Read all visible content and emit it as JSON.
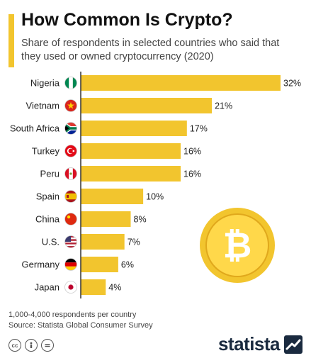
{
  "header": {
    "title": "How Common Is Crypto?",
    "subtitle": "Share of respondents in selected countries who said that they used or owned cryptocurrency (2020)"
  },
  "chart_data": {
    "type": "bar",
    "orientation": "horizontal",
    "title": "How Common Is Crypto?",
    "subtitle": "Share of respondents in selected countries who said that they used or owned cryptocurrency (2020)",
    "categories": [
      "Nigeria",
      "Vietnam",
      "South Africa",
      "Turkey",
      "Peru",
      "Spain",
      "China",
      "U.S.",
      "Germany",
      "Japan"
    ],
    "values": [
      32,
      21,
      17,
      16,
      16,
      10,
      8,
      7,
      6,
      4
    ],
    "value_labels": [
      "32%",
      "21%",
      "17%",
      "16%",
      "16%",
      "10%",
      "8%",
      "7%",
      "6%",
      "4%"
    ],
    "unit": "%",
    "xlim": [
      0,
      32
    ],
    "grid": false,
    "legend": "none",
    "bar_color": "#f2c52e",
    "axis_color": "#333333",
    "flag_icons": [
      "nigeria-flag-icon",
      "vietnam-flag-icon",
      "south-africa-flag-icon",
      "turkey-flag-icon",
      "peru-flag-icon",
      "spain-flag-icon",
      "china-flag-icon",
      "us-flag-icon",
      "germany-flag-icon",
      "japan-flag-icon"
    ]
  },
  "decoration": {
    "coin_icon": "bitcoin-coin-icon",
    "coin_colors": [
      "#f2c52e",
      "#ffd84a",
      "#e0a81c"
    ]
  },
  "footer": {
    "note": "1,000-4,000 respondents per country",
    "source": "Source: Statista Global Consumer Survey",
    "license_icons": [
      "cc-icon",
      "attribution-icon",
      "no-derivatives-icon"
    ]
  },
  "brand": {
    "name": "statista",
    "logo_icon": "statista-logo-icon",
    "color": "#1a2a3f"
  }
}
